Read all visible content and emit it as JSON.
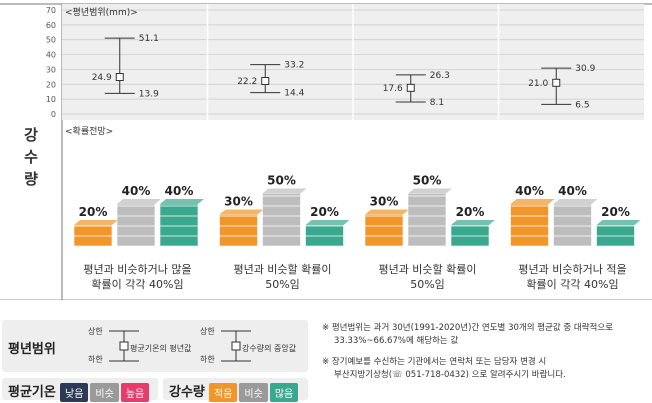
{
  "chart_data": {
    "type": "errorbar_and_probability",
    "axis": {
      "ylim": [
        0,
        70
      ],
      "yticks": [
        "70",
        "60",
        "50",
        "40",
        "30",
        "20",
        "10",
        "0"
      ],
      "grid": true
    },
    "range_label": "<평년범위(mm)>",
    "prob_label": "<확률전망>",
    "row_title": [
      "강",
      "수",
      "량"
    ],
    "periods": [
      {
        "mean": 24.9,
        "upper": 51.1,
        "lower": 13.9,
        "mean_label": "24.9",
        "upper_label": "51.1",
        "lower_label": "13.9",
        "probs": [
          20,
          40,
          40
        ],
        "prob_labels": [
          "20%",
          "40%",
          "40%"
        ],
        "text": [
          "평년과 비슷하거나 많을",
          "확률이 각각 40%임"
        ]
      },
      {
        "mean": 22.2,
        "upper": 33.2,
        "lower": 14.4,
        "mean_label": "22.2",
        "upper_label": "33.2",
        "lower_label": "14.4",
        "probs": [
          30,
          50,
          20
        ],
        "prob_labels": [
          "30%",
          "50%",
          "20%"
        ],
        "text": [
          "평년과 비슷할 확률이",
          "50%임"
        ]
      },
      {
        "mean": 17.6,
        "upper": 26.3,
        "lower": 8.1,
        "mean_label": "17.6",
        "upper_label": "26.3",
        "lower_label": "8.1",
        "probs": [
          30,
          50,
          20
        ],
        "prob_labels": [
          "30%",
          "50%",
          "20%"
        ],
        "text": [
          "평년과 비슷할 확률이",
          "50%임"
        ]
      },
      {
        "mean": 21.0,
        "upper": 30.9,
        "lower": 6.5,
        "mean_label": "21.0",
        "upper_label": "30.9",
        "lower_label": "6.5",
        "probs": [
          40,
          40,
          20
        ],
        "prob_labels": [
          "40%",
          "40%",
          "20%"
        ],
        "text": [
          "평년과 비슷하거나 적을",
          "확률이 각각 40%임"
        ]
      }
    ]
  },
  "colors": {
    "low": "#f0962a",
    "normal": "#bdbdbd",
    "high": "#3aa88e",
    "cold": "#2b3a55",
    "warm": "#e83a6b"
  },
  "legend": {
    "range_title": "평년범위",
    "temp_marker": {
      "upper": "상한",
      "lower": "하한",
      "center": "평균기온의 평년값"
    },
    "rain_marker": {
      "upper": "상한",
      "lower": "하한",
      "center": "강수량의 중앙값"
    },
    "temp_title": "평균기온",
    "temp_items": [
      "낮음",
      "비슷",
      "높음"
    ],
    "rain_title": "강수량",
    "rain_items": [
      "적음",
      "비슷",
      "많음"
    ]
  },
  "notes": {
    "note1_line1": "※ 평년범위는 과거 30년(1991-2020년)간 연도별 30개의 평균값 중 대략적으로",
    "note1_line2": "33.33%~66.67%에 해당하는 값",
    "note2_line1": "※ 장기예보를 수신하는 기관에서는 연락처 또는 담당자 변경 시",
    "note2_line2": "부산지방기상청(☏ 051-718-0432) 으로 알려주시기 바랍니다."
  }
}
